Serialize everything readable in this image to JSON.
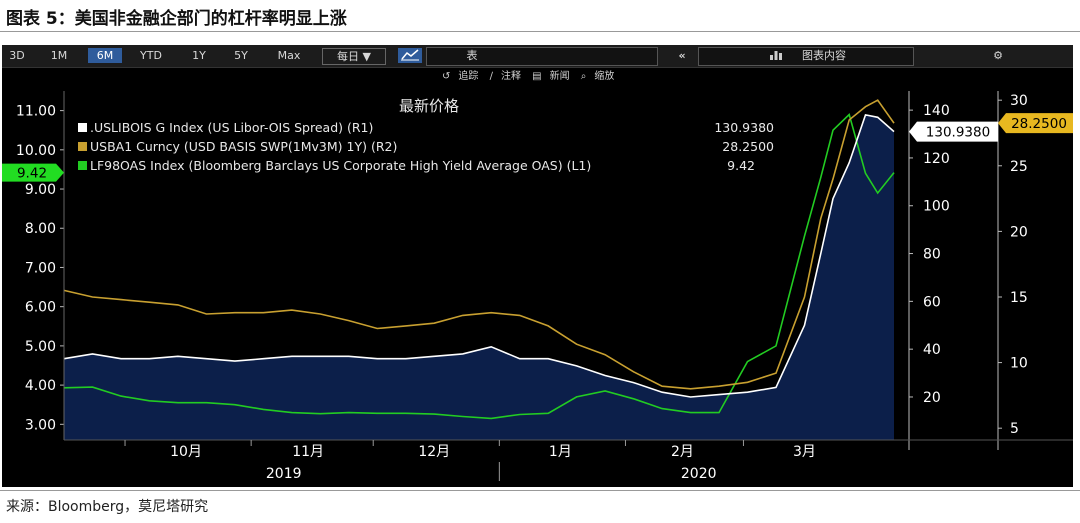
{
  "figure_title": "图表 5：美国非金融企部门的杠杆率明显上涨",
  "source": "来源：Bloomberg，莫尼塔研究",
  "toolbar": {
    "periods": [
      "3D",
      "1M",
      "6M",
      "YTD",
      "1Y",
      "5Y",
      "Max"
    ],
    "active_period": "6M",
    "frequency": "每日 ▼",
    "chart_icon": "line-chart-icon",
    "table_label": "表",
    "collapse_icon": "double-chevron-left-icon",
    "chart_content_label": "图表内容",
    "chart_content_icon": "chart-content-icon",
    "settings_icon": "gear-icon"
  },
  "subbar": {
    "track": "追踪",
    "annotate": "注释",
    "news": "新闻",
    "zoom": "缩放"
  },
  "colors": {
    "usd_libor_ois": "#ffffff",
    "usd_basis": "#c8a030",
    "hy_oas": "#22cc22",
    "area_fill": "#0c1f4a",
    "background": "#000000"
  },
  "chart_data": {
    "type": "line",
    "title": "最新价格",
    "axes": {
      "left": {
        "ticks": [
          "3.00",
          "4.00",
          "5.00",
          "6.00",
          "7.00",
          "8.00",
          "9.00",
          "10.00",
          "11.00"
        ],
        "range": [
          2.6,
          11.5
        ]
      },
      "right1": {
        "ticks": [
          20,
          40,
          60,
          80,
          100,
          120,
          140
        ],
        "range": [
          2,
          148
        ]
      },
      "right2": {
        "ticks": [
          5,
          10,
          15,
          20,
          25,
          30
        ],
        "range": [
          4.1,
          30.7
        ]
      }
    },
    "x_month_labels": [
      "10月",
      "11月",
      "12月",
      "1月",
      "2月",
      "3月"
    ],
    "x_year_labels": [
      "2019",
      "2020"
    ],
    "legend": [
      {
        "text": ".USLIBOIS G Index (US Libor-OIS Spread) (R1)",
        "value": "130.9380"
      },
      {
        "text": "USBA1 Curncy (USD BASIS SWP(1Mv3M) 1Y) (R2)",
        "value": "28.2500"
      },
      {
        "text": "LF98OAS Index (Bloomberg Barclays US Corporate High Yield Average OAS) (L1)",
        "value": "9.42"
      }
    ],
    "last_values": {
      "r1": "130.9380",
      "r2": "28.2500",
      "l1": "9.42"
    },
    "x": [
      "2019-09-16",
      "2019-09-23",
      "2019-09-30",
      "2019-10-07",
      "2019-10-14",
      "2019-10-21",
      "2019-10-28",
      "2019-11-04",
      "2019-11-11",
      "2019-11-18",
      "2019-11-25",
      "2019-12-02",
      "2019-12-09",
      "2019-12-16",
      "2019-12-23",
      "2019-12-30",
      "2020-01-06",
      "2020-01-13",
      "2020-01-20",
      "2020-01-27",
      "2020-02-03",
      "2020-02-10",
      "2020-02-17",
      "2020-02-24",
      "2020-03-02",
      "2020-03-09",
      "2020-03-16",
      "2020-03-20",
      "2020-03-23",
      "2020-03-27",
      "2020-03-31",
      "2020-04-03",
      "2020-04-07"
    ],
    "series": [
      {
        "name": ".USLIBOIS G Index",
        "axis": "right1",
        "style": "white-line-with-area",
        "values": [
          36,
          38,
          36,
          36,
          37,
          36,
          35,
          36,
          37,
          37,
          37,
          36,
          36,
          37,
          38,
          41,
          36,
          36,
          33,
          29,
          26,
          22,
          20,
          21,
          22,
          24,
          50,
          80,
          103,
          118,
          138,
          137,
          131
        ]
      },
      {
        "name": "USBA1 Curncy",
        "axis": "right2",
        "style": "gold-line",
        "values": [
          15.5,
          15,
          14.8,
          14.6,
          14.4,
          13.7,
          13.8,
          13.8,
          14,
          13.7,
          13.2,
          12.6,
          12.8,
          13,
          13.6,
          13.8,
          13.6,
          12.8,
          11.4,
          10.6,
          9.3,
          8.2,
          8,
          8.2,
          8.5,
          9.2,
          15,
          21,
          24,
          28.5,
          29.5,
          30,
          28.25
        ]
      },
      {
        "name": "LF98OAS Index",
        "axis": "left",
        "style": "green-line",
        "values": [
          3.93,
          3.95,
          3.72,
          3.6,
          3.55,
          3.55,
          3.5,
          3.38,
          3.3,
          3.27,
          3.3,
          3.28,
          3.28,
          3.26,
          3.2,
          3.15,
          3.25,
          3.28,
          3.7,
          3.85,
          3.65,
          3.4,
          3.3,
          3.3,
          4.6,
          5.0,
          7.8,
          9.3,
          10.5,
          10.9,
          9.4,
          8.9,
          9.42
        ]
      }
    ]
  }
}
